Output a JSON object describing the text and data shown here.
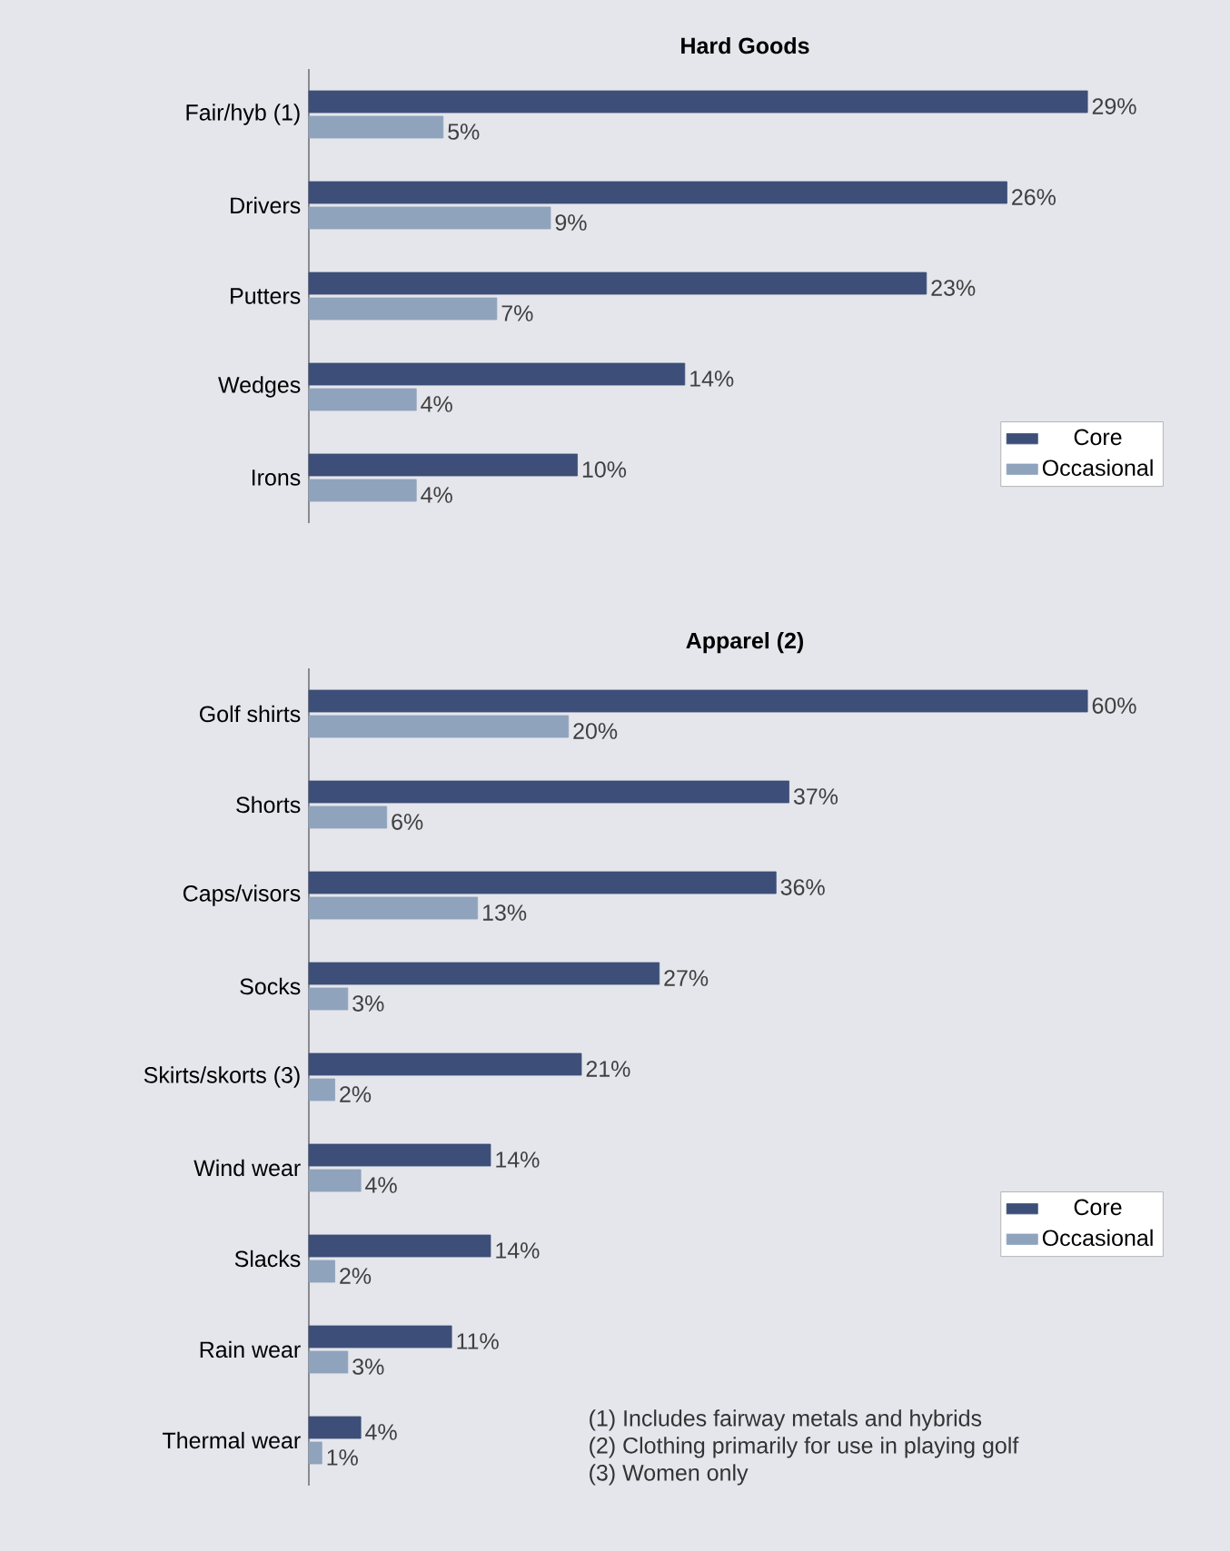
{
  "chart_data": [
    {
      "type": "bar",
      "orientation": "horizontal",
      "title": "Hard Goods",
      "tick_labels": "y",
      "legend": "bottom right",
      "categories": [
        "Fair/hyb (1)",
        "Drivers",
        "Putters",
        "Wedges",
        "Irons"
      ],
      "series": [
        {
          "name": "Core",
          "color": "#3d4f78",
          "values": [
            29,
            26,
            23,
            14,
            10
          ],
          "value_labels": [
            "29%",
            "26%",
            "23%",
            "14%",
            "10%"
          ]
        },
        {
          "name": "Occasional",
          "color": "#8fa3bd",
          "values": [
            5,
            9,
            7,
            4,
            4
          ],
          "value_labels": [
            "5%",
            "9%",
            "7%",
            "4%",
            "4%"
          ]
        }
      ]
    },
    {
      "type": "bar",
      "orientation": "horizontal",
      "title": "Apparel (2)",
      "tick_labels": "y",
      "legend": "right",
      "categories": [
        "Golf shirts",
        "Shorts",
        "Caps/visors",
        "Socks",
        "Skirts/skorts (3)",
        "Wind wear",
        "Slacks",
        "Rain wear",
        "Thermal wear"
      ],
      "series": [
        {
          "name": "Core",
          "color": "#3d4f78",
          "values": [
            60,
            37,
            36,
            27,
            21,
            14,
            14,
            11,
            4
          ],
          "value_labels": [
            "60%",
            "37%",
            "36%",
            "27%",
            "21%",
            "14%",
            "14%",
            "11%",
            "4%"
          ]
        },
        {
          "name": "Occasional",
          "color": "#8fa3bd",
          "values": [
            20,
            6,
            13,
            3,
            2,
            4,
            2,
            3,
            1
          ],
          "value_labels": [
            "20%",
            "6%",
            "13%",
            "3%",
            "2%",
            "4%",
            "2%",
            "3%",
            "1%"
          ]
        }
      ],
      "annotations": [
        "(1) Includes fairway metals and hybrids",
        "(2) Clothing primarily for use in playing golf",
        "(3) Women only"
      ]
    }
  ]
}
